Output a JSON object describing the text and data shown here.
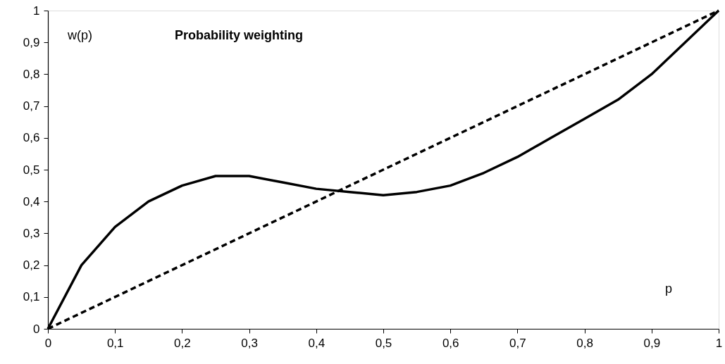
{
  "chart_data": {
    "type": "line",
    "title": "Probability weighting",
    "xlabel": "p",
    "ylabel": "w(p)",
    "xlim": [
      0,
      1
    ],
    "ylim": [
      0,
      1
    ],
    "xticks": [
      0,
      {
        "value": 0.1,
        "label": "0,1"
      },
      {
        "value": 0.2,
        "label": "0,2"
      },
      {
        "value": 0.3,
        "label": "0,3"
      },
      {
        "value": 0.4,
        "label": "0,4"
      },
      {
        "value": 0.5,
        "label": "0,5"
      },
      {
        "value": 0.6,
        "label": "0,6"
      },
      {
        "value": 0.7,
        "label": "0,7"
      },
      {
        "value": 0.8,
        "label": "0,8"
      },
      {
        "value": 0.9,
        "label": "0,9"
      },
      1
    ],
    "yticks": [
      0,
      {
        "value": 0.1,
        "label": "0,1"
      },
      {
        "value": 0.2,
        "label": "0,2"
      },
      {
        "value": 0.3,
        "label": "0,3"
      },
      {
        "value": 0.4,
        "label": "0,4"
      },
      {
        "value": 0.5,
        "label": "0,5"
      },
      {
        "value": 0.6,
        "label": "0,6"
      },
      {
        "value": 0.7,
        "label": "0,7"
      },
      {
        "value": 0.8,
        "label": "0,8"
      },
      {
        "value": 0.9,
        "label": "0,9"
      },
      1
    ],
    "marker": "none",
    "series": [
      {
        "color": "#000000",
        "line_style": "solid",
        "x": [
          0,
          0.05,
          0.1,
          0.15,
          0.2,
          0.25,
          0.3,
          0.35,
          0.4,
          0.45,
          0.5,
          0.55,
          0.6,
          0.65,
          0.7,
          0.75,
          0.8,
          0.85,
          0.9,
          0.95,
          1
        ],
        "values": [
          0,
          0.2,
          0.32,
          0.4,
          0.45,
          0.48,
          0.48,
          0.46,
          0.44,
          0.43,
          0.42,
          0.43,
          0.45,
          0.49,
          0.54,
          0.6,
          0.66,
          0.72,
          0.8,
          0.9,
          1
        ]
      },
      {
        "color": "#000000",
        "line_style": "dashed",
        "x": [
          0,
          1
        ],
        "values": [
          0,
          1
        ]
      }
    ]
  }
}
